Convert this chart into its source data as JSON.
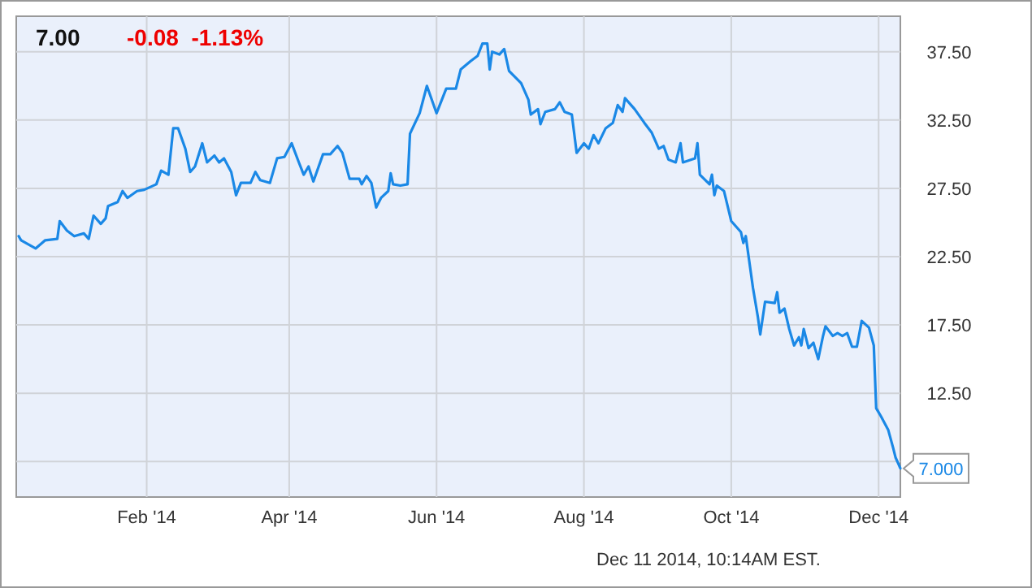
{
  "chart_data": {
    "type": "line",
    "title": "7.00",
    "subtitle": "-0.08  -1.13%",
    "x": [
      "2013-12-10",
      "2013-12-11",
      "2013-12-17",
      "2013-12-21",
      "2013-12-26",
      "2013-12-27",
      "2013-12-30",
      "2014-01-02",
      "2014-01-06",
      "2014-01-08",
      "2014-01-10",
      "2014-01-13",
      "2014-01-15",
      "2014-01-16",
      "2014-01-20",
      "2014-01-22",
      "2014-01-24",
      "2014-01-28",
      "2014-01-31",
      "2014-02-05",
      "2014-02-07",
      "2014-02-10",
      "2014-02-12",
      "2014-02-14",
      "2014-02-17",
      "2014-02-19",
      "2014-02-21",
      "2014-02-24",
      "2014-02-26",
      "2014-03-01",
      "2014-03-03",
      "2014-03-05",
      "2014-03-08",
      "2014-03-10",
      "2014-03-12",
      "2014-03-16",
      "2014-03-18",
      "2014-03-20",
      "2014-03-24",
      "2014-03-27",
      "2014-03-30",
      "2014-04-02",
      "2014-04-05",
      "2014-04-07",
      "2014-04-09",
      "2014-04-11",
      "2014-04-15",
      "2014-04-18",
      "2014-04-21",
      "2014-04-23",
      "2014-04-26",
      "2014-04-30",
      "2014-05-01",
      "2014-05-03",
      "2014-05-05",
      "2014-05-07",
      "2014-05-09",
      "2014-05-12",
      "2014-05-13",
      "2014-05-14",
      "2014-05-17",
      "2014-05-20",
      "2014-05-21",
      "2014-05-25",
      "2014-05-28",
      "2014-06-01",
      "2014-06-05",
      "2014-06-09",
      "2014-06-11",
      "2014-06-15",
      "2014-06-18",
      "2014-06-20",
      "2014-06-22",
      "2014-06-23",
      "2014-06-24",
      "2014-06-27",
      "2014-06-29",
      "2014-07-01",
      "2014-07-06",
      "2014-07-09",
      "2014-07-10",
      "2014-07-13",
      "2014-07-14",
      "2014-07-16",
      "2014-07-20",
      "2014-07-22",
      "2014-07-24",
      "2014-07-27",
      "2014-07-29",
      "2014-08-01",
      "2014-08-03",
      "2014-08-05",
      "2014-08-07",
      "2014-08-10",
      "2014-08-13",
      "2014-08-15",
      "2014-08-17",
      "2014-08-18",
      "2014-08-22",
      "2014-08-26",
      "2014-08-29",
      "2014-09-01",
      "2014-09-03",
      "2014-09-05",
      "2014-09-08",
      "2014-09-10",
      "2014-09-11",
      "2014-09-16",
      "2014-09-17",
      "2014-09-18",
      "2014-09-22",
      "2014-09-23",
      "2014-09-24",
      "2014-09-25",
      "2014-09-28",
      "2014-10-01",
      "2014-10-05",
      "2014-10-06",
      "2014-10-07",
      "2014-10-10",
      "2014-10-12",
      "2014-10-13",
      "2014-10-15",
      "2014-10-19",
      "2014-10-20",
      "2014-10-21",
      "2014-10-23",
      "2014-10-25",
      "2014-10-27",
      "2014-10-29",
      "2014-10-30",
      "2014-10-31",
      "2014-11-02",
      "2014-11-04",
      "2014-11-06",
      "2014-11-08",
      "2014-11-09",
      "2014-11-12",
      "2014-11-14",
      "2014-11-16",
      "2014-11-18",
      "2014-11-20",
      "2014-11-22",
      "2014-11-24",
      "2014-11-27",
      "2014-11-29",
      "2014-11-30",
      "2014-12-02",
      "2014-12-05",
      "2014-12-07",
      "2014-12-08",
      "2014-12-09",
      "2014-12-10"
    ],
    "series": [
      {
        "color": "#1a88e6",
        "values": [
          24.0,
          23.7,
          23.1,
          23.7,
          23.8,
          25.1,
          24.4,
          24.0,
          24.2,
          23.8,
          25.5,
          24.9,
          25.3,
          26.2,
          26.5,
          27.3,
          26.8,
          27.3,
          27.4,
          27.8,
          28.8,
          28.5,
          31.9,
          31.9,
          30.4,
          28.7,
          29.1,
          30.8,
          29.4,
          29.9,
          29.4,
          29.7,
          28.7,
          27.0,
          27.9,
          27.9,
          28.7,
          28.1,
          27.9,
          29.7,
          29.8,
          30.8,
          29.4,
          28.5,
          29.1,
          28.0,
          30.0,
          30.0,
          30.6,
          30.1,
          28.2,
          28.2,
          27.8,
          28.4,
          27.9,
          26.1,
          26.8,
          27.3,
          28.6,
          27.8,
          27.7,
          27.8,
          31.5,
          33.0,
          35.0,
          33.0,
          34.8,
          34.8,
          36.2,
          36.8,
          37.2,
          38.1,
          38.1,
          36.2,
          37.5,
          37.3,
          37.7,
          36.1,
          35.2,
          34.0,
          32.9,
          33.3,
          32.2,
          33.1,
          33.3,
          33.8,
          33.1,
          32.9,
          30.1,
          30.8,
          30.4,
          31.4,
          30.8,
          31.9,
          32.3,
          33.6,
          33.1,
          34.1,
          33.3,
          32.3,
          31.6,
          30.4,
          30.6,
          29.6,
          29.4,
          30.8,
          29.4,
          29.7,
          30.8,
          28.5,
          27.8,
          28.5,
          27.0,
          27.7,
          27.3,
          25.1,
          24.3,
          23.5,
          24.0,
          20.2,
          18.1,
          16.8,
          19.2,
          19.1,
          19.9,
          18.4,
          18.7,
          17.2,
          16.0,
          16.6,
          16.0,
          17.2,
          15.8,
          16.2,
          15.0,
          16.7,
          17.4,
          16.7,
          16.9,
          16.7,
          16.9,
          15.9,
          15.9,
          17.8,
          17.3,
          16.0,
          11.4,
          10.8,
          9.8,
          8.5,
          7.8,
          7.4,
          7.0
        ]
      }
    ],
    "xlim": [
      "2013-12-09",
      "2014-12-10"
    ],
    "xticks": [
      {
        "value": "2014-02-01",
        "label": "Feb '14"
      },
      {
        "value": "2014-04-01",
        "label": "Apr '14"
      },
      {
        "value": "2014-06-01",
        "label": "Jun '14"
      },
      {
        "value": "2014-08-01",
        "label": "Aug '14"
      },
      {
        "value": "2014-10-01",
        "label": "Oct '14"
      },
      {
        "value": "2014-12-01",
        "label": "Dec '14"
      }
    ],
    "ylim": [
      4.9,
      40.1
    ],
    "yticks": [
      {
        "value": 7.5,
        "label": null
      },
      {
        "value": 12.5,
        "label": "12.50"
      },
      {
        "value": 17.5,
        "label": "17.50"
      },
      {
        "value": 22.5,
        "label": "22.50"
      },
      {
        "value": 27.5,
        "label": "27.50"
      },
      {
        "value": 32.5,
        "label": "32.50"
      },
      {
        "value": 37.5,
        "label": "37.50"
      }
    ],
    "grid": true,
    "annotations": [
      {
        "text": "7.000",
        "x": "2014-12-10",
        "y": 7.0
      },
      "Dec 11 2014, 10:14AM EST."
    ]
  }
}
